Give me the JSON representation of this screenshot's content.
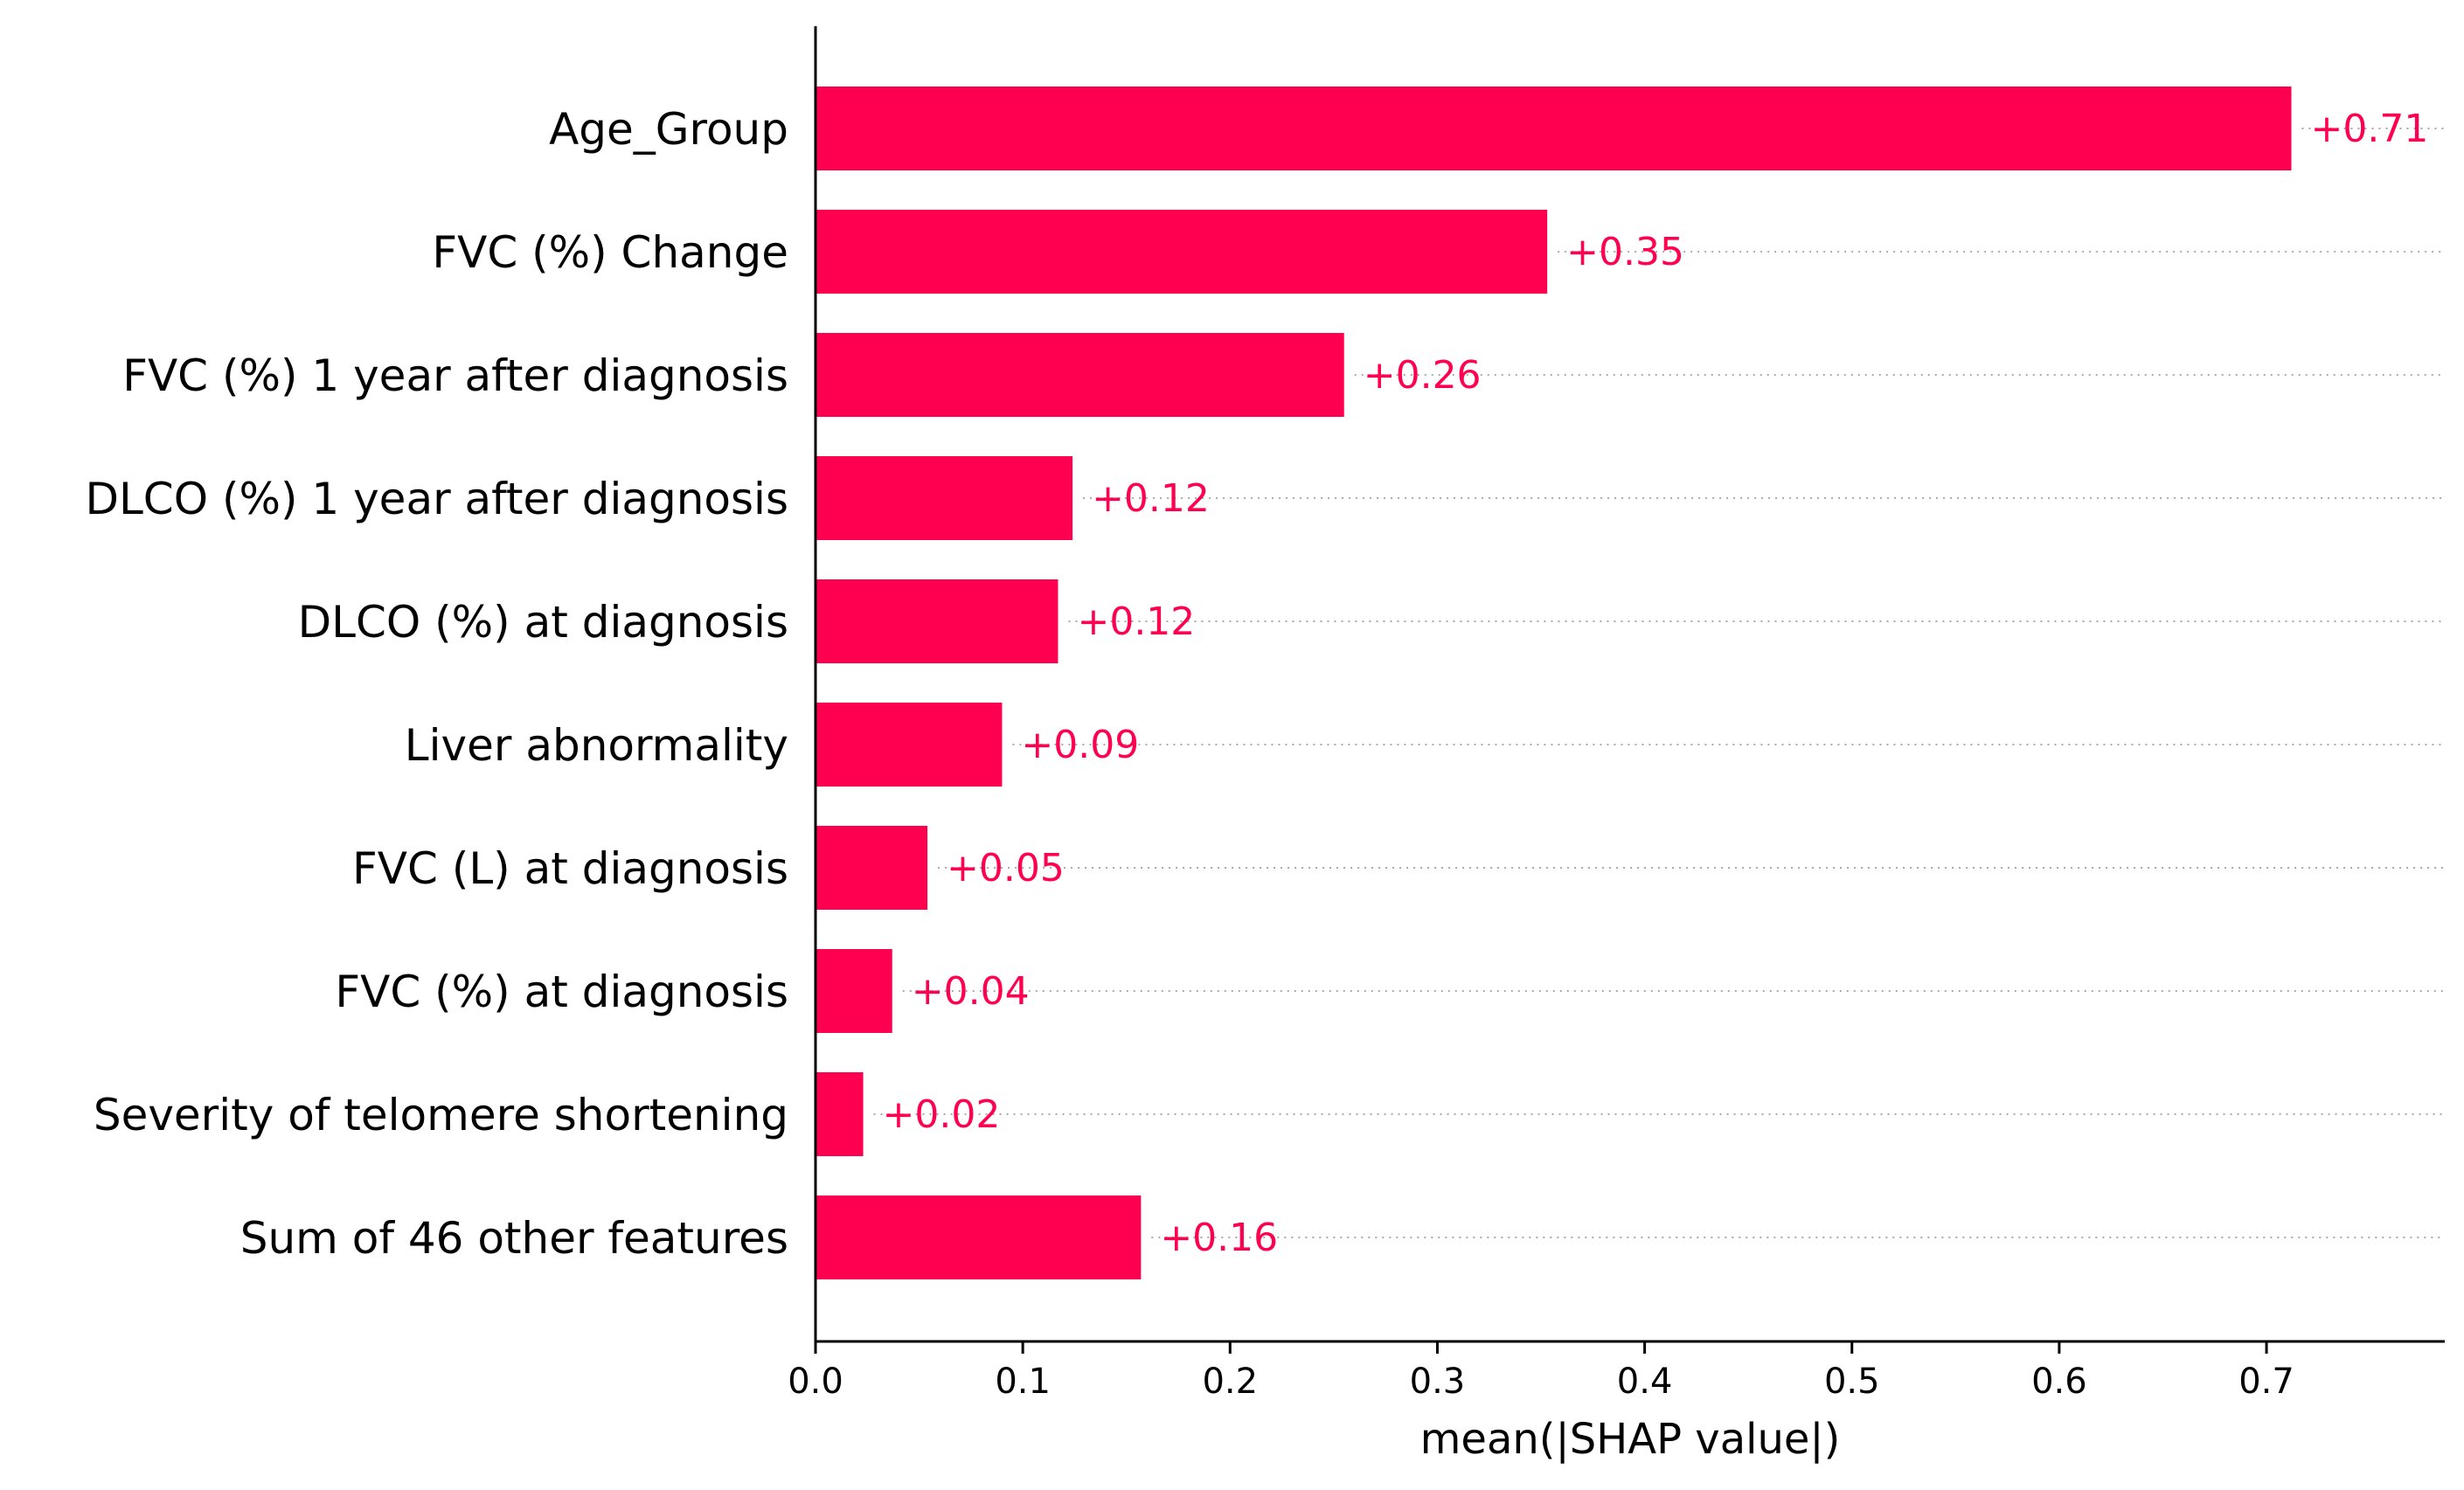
{
  "chart_data": {
    "type": "bar",
    "orientation": "horizontal",
    "categories": [
      "Age_Group",
      "FVC (%) Change",
      "FVC (%) 1 year after diagnosis",
      "DLCO (%) 1 year after diagnosis",
      "DLCO (%) at diagnosis",
      "Liver abnormality",
      "FVC (L) at diagnosis",
      "FVC (%) at diagnosis",
      "Severity of telomere shortening",
      "Sum of 46 other features"
    ],
    "values": [
      0.712,
      0.353,
      0.255,
      0.124,
      0.117,
      0.09,
      0.054,
      0.037,
      0.023,
      0.157
    ],
    "value_labels": [
      "+0.71",
      "+0.35",
      "+0.26",
      "+0.12",
      "+0.12",
      "+0.09",
      "+0.05",
      "+0.04",
      "+0.02",
      "+0.16"
    ],
    "xlabel": "mean(|SHAP value|)",
    "ylabel": "",
    "title": "",
    "xlim": [
      0,
      0.786
    ],
    "xticks": [
      0.0,
      0.1,
      0.2,
      0.3,
      0.4,
      0.5,
      0.6,
      0.7
    ],
    "xtick_labels": [
      "0.0",
      "0.1",
      "0.2",
      "0.3",
      "0.4",
      "0.5",
      "0.6",
      "0.7"
    ],
    "bar_color": "#ff0051",
    "label_color": "#ff0051",
    "gridlines": "dotted horizontal row guides",
    "legend": "none"
  }
}
